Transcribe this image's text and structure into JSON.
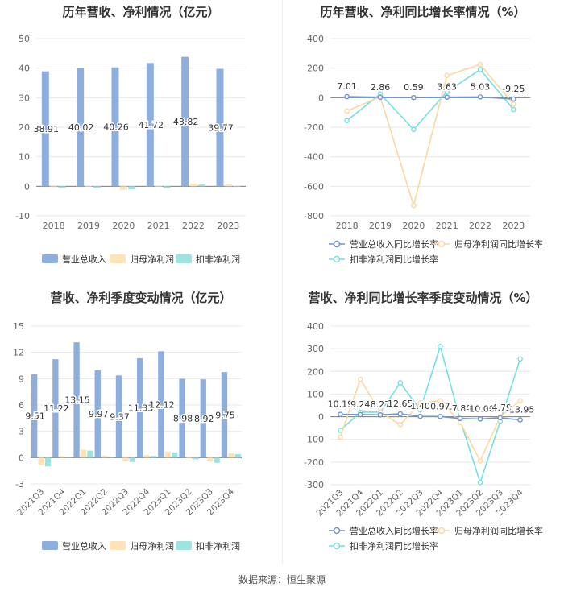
{
  "footer": "数据来源：恒生聚源",
  "chart_data": [
    {
      "id": "c1",
      "type": "bar",
      "title": "历年营收、净利情况（亿元）",
      "categories": [
        "2018",
        "2019",
        "2020",
        "2021",
        "2022",
        "2023"
      ],
      "ylim": [
        -10,
        50
      ],
      "yticks": [
        -10,
        0,
        10,
        20,
        30,
        40,
        50
      ],
      "series": [
        {
          "name": "营业总收入",
          "color": "#8eaedd",
          "values": [
            38.91,
            40.02,
            40.26,
            41.72,
            43.82,
            39.77
          ]
        },
        {
          "name": "归母净利润",
          "color": "#fde4b8",
          "values": [
            -0.3,
            -0.2,
            -1.2,
            -0.2,
            0.9,
            0.6
          ]
        },
        {
          "name": "扣非净利润",
          "color": "#9fe3e1",
          "values": [
            -0.6,
            -0.5,
            -1.0,
            -0.7,
            0.6,
            -0.2
          ]
        }
      ],
      "labels": [
        "38.91",
        "40.02",
        "40.26",
        "41.72",
        "43.82",
        "39.77"
      ]
    },
    {
      "id": "c2",
      "type": "line",
      "title": "历年营收、净利同比增长率情况（%）",
      "categories": [
        "2018",
        "2019",
        "2020",
        "2021",
        "2022",
        "2023"
      ],
      "ylim": [
        -800,
        400
      ],
      "yticks": [
        -800,
        -600,
        -400,
        -200,
        0,
        200,
        400
      ],
      "series": [
        {
          "name": "营业总收入同比增长率",
          "color": "#6f94cd",
          "values": [
            7.01,
            2.86,
            0.59,
            3.63,
            5.03,
            -9.25
          ]
        },
        {
          "name": "归母净利润同比增长率",
          "color": "#fbd8a0",
          "values": [
            -90,
            5,
            -730,
            150,
            225,
            -45
          ]
        },
        {
          "name": "扣非净利润同比增长率",
          "color": "#76dfe0",
          "values": [
            -155,
            25,
            -215,
            40,
            190,
            -80
          ]
        }
      ],
      "labels": [
        "7.01",
        "2.86",
        "0.59",
        "3.63",
        "5.03",
        "-9.25"
      ]
    },
    {
      "id": "c3",
      "type": "bar",
      "title": "营收、净利季度变动情况（亿元）",
      "categories": [
        "2021Q3",
        "2021Q4",
        "2022Q1",
        "2022Q2",
        "2022Q3",
        "2022Q4",
        "2023Q1",
        "2023Q2",
        "2023Q3",
        "2023Q4"
      ],
      "ylim": [
        -3,
        15
      ],
      "yticks": [
        -3,
        0,
        3,
        6,
        9,
        12,
        15
      ],
      "series": [
        {
          "name": "营业总收入",
          "color": "#8eaedd",
          "values": [
            9.51,
            11.22,
            13.15,
            9.97,
            9.37,
            11.33,
            12.12,
            8.98,
            8.92,
            9.75
          ]
        },
        {
          "name": "归母净利润",
          "color": "#fde4b8",
          "values": [
            -0.8,
            0.2,
            0.9,
            0.2,
            -0.4,
            0.3,
            0.7,
            -0.1,
            -0.4,
            0.5
          ]
        },
        {
          "name": "扣非净利润",
          "color": "#9fe3e1",
          "values": [
            -1.0,
            0.1,
            0.8,
            0.1,
            -0.5,
            0.2,
            0.6,
            -0.2,
            -0.6,
            0.4
          ]
        }
      ],
      "labels": [
        "9.51",
        "11.22",
        "13.15",
        "9.97",
        "9.37",
        "11.33",
        "12.12",
        "8.98",
        "8.92",
        "9.75"
      ]
    },
    {
      "id": "c4",
      "type": "line",
      "title": "营收、净利同比增长率季度变动情况（%）",
      "categories": [
        "2021Q3",
        "2021Q4",
        "2022Q1",
        "2022Q2",
        "2022Q3",
        "2022Q4",
        "2023Q1",
        "2023Q2",
        "2023Q3",
        "2023Q4"
      ],
      "ylim": [
        -300,
        400
      ],
      "yticks": [
        -300,
        -200,
        -100,
        0,
        100,
        200,
        300,
        400
      ],
      "series": [
        {
          "name": "营业总收入同比增长率",
          "color": "#6f94cd",
          "values": [
            10.19,
            9.24,
            8.27,
            12.65,
            1.4,
            0.97,
            -7.8,
            -10.0,
            -4.79,
            -13.95
          ]
        },
        {
          "name": "归母净利润同比增长率",
          "color": "#fbd8a0",
          "values": [
            -90,
            165,
            20,
            -35,
            60,
            70,
            -25,
            -195,
            0,
            70
          ]
        },
        {
          "name": "扣非净利润同比增长率",
          "color": "#76dfe0",
          "values": [
            -60,
            20,
            20,
            150,
            30,
            310,
            -15,
            -290,
            -20,
            255
          ]
        }
      ],
      "labels": [
        "10.19",
        "9.24",
        "8.27",
        "12.65",
        "1.40",
        "0.97",
        "-7.80",
        "-10.00",
        "-4.79",
        "-13.95"
      ]
    }
  ]
}
